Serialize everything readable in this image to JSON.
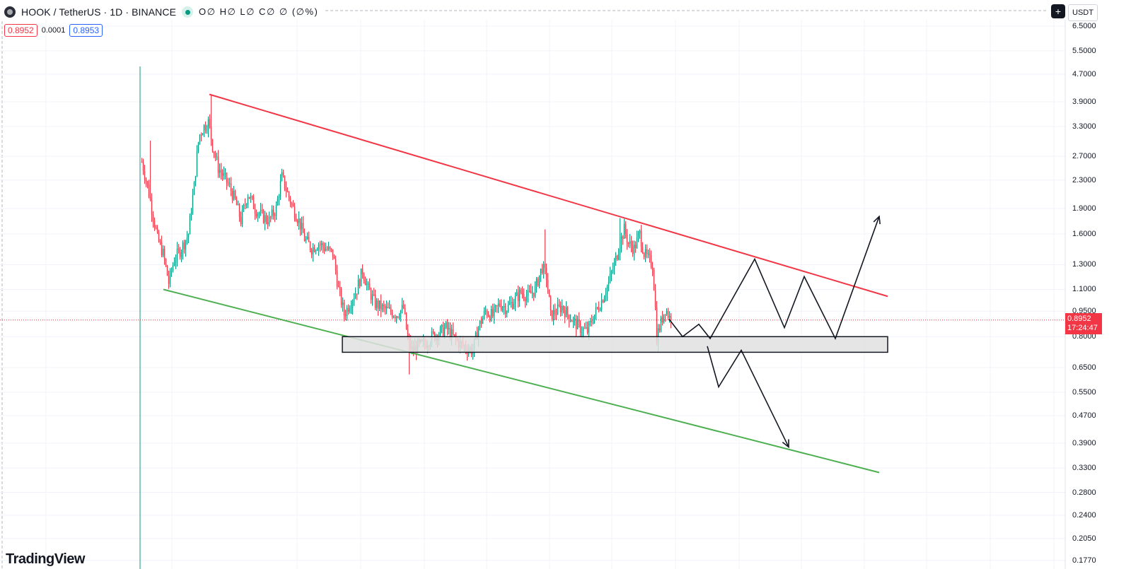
{
  "header": {
    "title": "HOOK / TetherUS · 1D · BINANCE",
    "ohlc": "O∅ H∅ L∅ C∅ ∅ (∅%)"
  },
  "prices": {
    "sell": "0.8952",
    "spread": "0.0001",
    "buy": "0.8953"
  },
  "currency": "USDT",
  "current_price": {
    "value": "0.8952",
    "countdown": "17:24:47"
  },
  "watermark": "TradingView",
  "y_axis_ticks": [
    "6.5000",
    "5.5000",
    "4.7000",
    "3.9000",
    "3.3000",
    "2.7000",
    "2.3000",
    "1.9000",
    "1.6000",
    "1.3000",
    "1.1000",
    "0.9500",
    "0.8000",
    "0.6500",
    "0.5500",
    "0.4700",
    "0.3900",
    "0.3300",
    "0.2800",
    "0.2400",
    "0.2050",
    "0.1770"
  ],
  "colors": {
    "up": "#089981",
    "down": "#f23645",
    "resistance": "#f23645",
    "support": "#4caf50",
    "projection": "#131722",
    "zone_fill": "#e0e0e0"
  },
  "chart_data": {
    "type": "candlestick",
    "symbol": "HOOK/USDT",
    "interval": "1D",
    "y_scale": "log",
    "ylim": [
      0.177,
      6.5
    ],
    "resistance_line": {
      "start_price": 4.1,
      "end_price": 1.05
    },
    "support_line": {
      "start_price": 1.1,
      "end_price": 0.32
    },
    "support_zone": {
      "low": 0.72,
      "high": 0.8
    },
    "projections": [
      {
        "scenario": "breakout",
        "path": [
          0.9,
          0.8,
          0.87,
          0.79,
          1.35,
          0.85,
          1.2,
          0.79,
          1.8
        ]
      },
      {
        "scenario": "breakdown",
        "path": [
          0.75,
          0.57,
          0.73,
          0.38
        ]
      }
    ]
  },
  "icons": {
    "add": "plus-icon",
    "status": "live-dot-icon",
    "logo": "logo-icon"
  }
}
